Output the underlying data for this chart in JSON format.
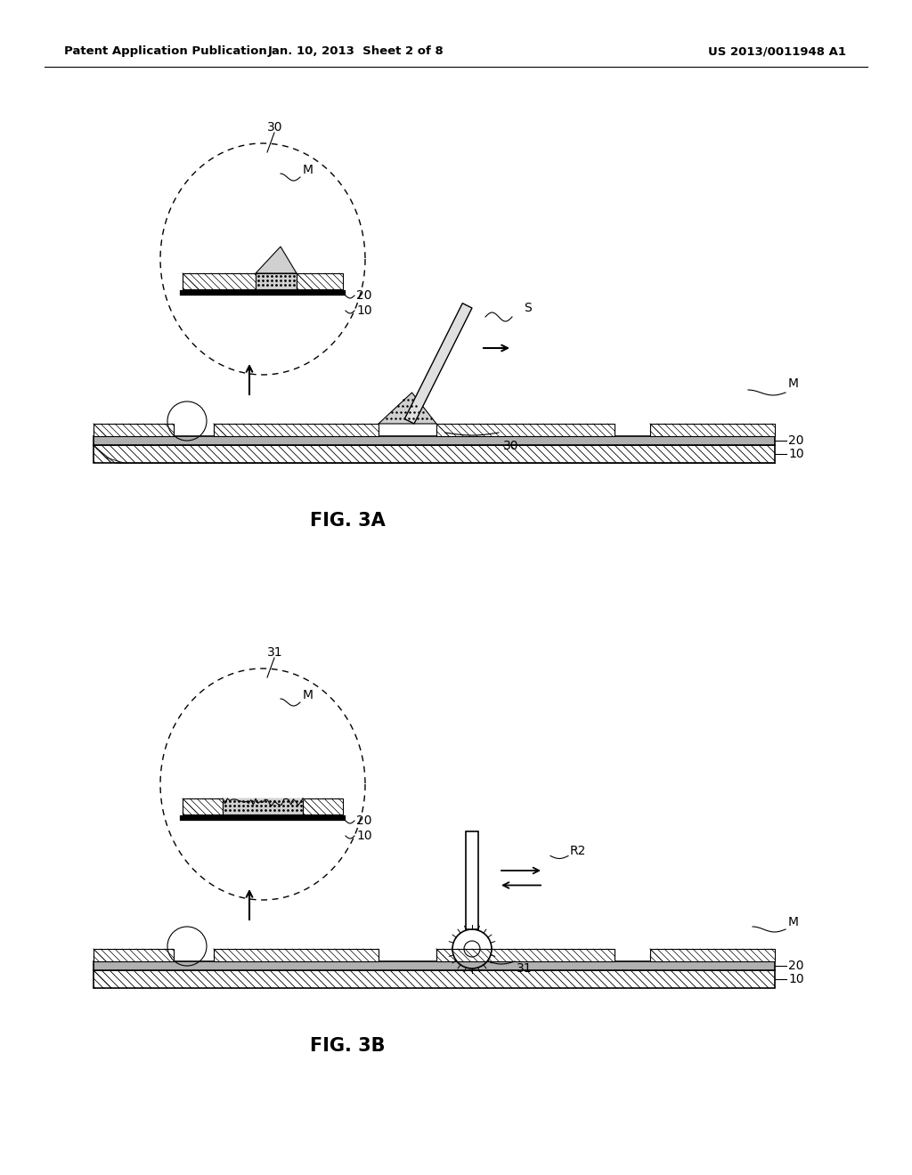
{
  "bg_color": "#ffffff",
  "header_left": "Patent Application Publication",
  "header_mid": "Jan. 10, 2013  Sheet 2 of 8",
  "header_right": "US 2013/0011948 A1",
  "fig3a_label": "FIG. 3A",
  "fig3b_label": "FIG. 3B",
  "lc": "#000000"
}
